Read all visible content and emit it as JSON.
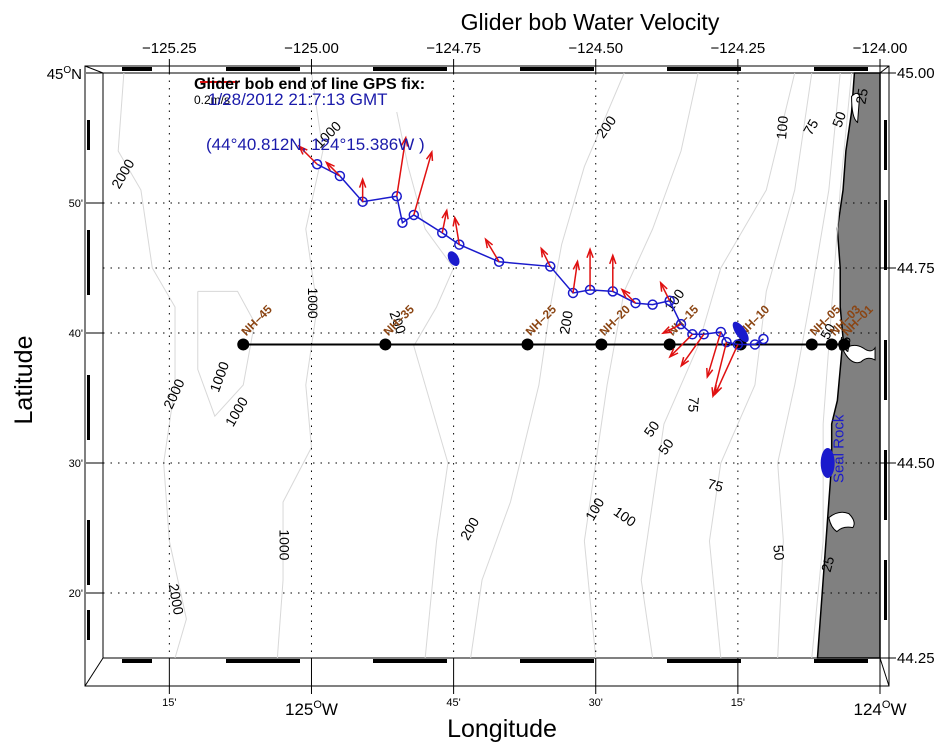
{
  "chart_data": {
    "type": "map",
    "title": "Glider bob Water Velocity",
    "xlabel": "Longitude",
    "ylabel": "Latitude",
    "xlim": [
      -125.3667,
      -124.0
    ],
    "ylim": [
      44.25,
      45.0
    ],
    "top_ticks": [
      {
        "value": -125.25,
        "label": "−125.25"
      },
      {
        "value": -125.0,
        "label": "−125.00"
      },
      {
        "value": -124.75,
        "label": "−124.75"
      },
      {
        "value": -124.5,
        "label": "−124.50"
      },
      {
        "value": -124.25,
        "label": "−124.25"
      },
      {
        "value": -124.0,
        "label": "−124.00"
      }
    ],
    "right_ticks": [
      {
        "value": 45.0,
        "label": "45.00"
      },
      {
        "value": 44.75,
        "label": "44.75"
      },
      {
        "value": 44.5,
        "label": "44.50"
      },
      {
        "value": 44.25,
        "label": "44.25"
      }
    ],
    "bottom_ticks": [
      {
        "value": -125.25,
        "label": "15'",
        "major": false
      },
      {
        "value": -125.0,
        "label": "125",
        "deg": true,
        "hemi": "W",
        "major": true
      },
      {
        "value": -124.75,
        "label": "45'",
        "major": false
      },
      {
        "value": -124.5,
        "label": "30'",
        "major": false
      },
      {
        "value": -124.25,
        "label": "15'",
        "major": false
      },
      {
        "value": -124.0,
        "label": "124",
        "deg": true,
        "hemi": "W",
        "major": true
      }
    ],
    "left_ticks": [
      {
        "value": 45.0,
        "label": "45",
        "deg": true,
        "hemi": "N",
        "major": true
      },
      {
        "value": 44.8333,
        "label": "50'",
        "major": false
      },
      {
        "value": 44.6667,
        "label": "40'",
        "major": false
      },
      {
        "value": 44.5,
        "label": "30'",
        "major": false
      },
      {
        "value": 44.3333,
        "label": "20'",
        "major": false
      }
    ],
    "grid": true,
    "stations": [
      {
        "name": "NH–45",
        "lon": -125.12,
        "lat": 44.652
      },
      {
        "name": "NH–35",
        "lon": -124.87,
        "lat": 44.652
      },
      {
        "name": "NH–25",
        "lon": -124.62,
        "lat": 44.652
      },
      {
        "name": "NH–20",
        "lon": -124.49,
        "lat": 44.652
      },
      {
        "name": "NH–15",
        "lon": -124.37,
        "lat": 44.652
      },
      {
        "name": "NH–10",
        "lon": -124.245,
        "lat": 44.652
      },
      {
        "name": "NH–05",
        "lon": -124.12,
        "lat": 44.652
      },
      {
        "name": "NH–03",
        "lon": -124.085,
        "lat": 44.652
      },
      {
        "name": "NH–01",
        "lon": -124.063,
        "lat": 44.652
      }
    ],
    "glider_track": [
      [
        -124.99,
        44.883
      ],
      [
        -124.95,
        44.868
      ],
      [
        -124.91,
        44.835
      ],
      [
        -124.85,
        44.842
      ],
      [
        -124.84,
        44.808
      ],
      [
        -124.82,
        44.818
      ],
      [
        -124.77,
        44.795
      ],
      [
        -124.74,
        44.78
      ],
      [
        -124.67,
        44.758
      ],
      [
        -124.58,
        44.752
      ],
      [
        -124.54,
        44.718
      ],
      [
        -124.51,
        44.722
      ],
      [
        -124.47,
        44.72
      ],
      [
        -124.43,
        44.705
      ],
      [
        -124.4,
        44.703
      ],
      [
        -124.37,
        44.708
      ],
      [
        -124.35,
        44.678
      ],
      [
        -124.33,
        44.665
      ],
      [
        -124.31,
        44.665
      ],
      [
        -124.28,
        44.668
      ],
      [
        -124.27,
        44.655
      ],
      [
        -124.25,
        44.652
      ],
      [
        -124.22,
        44.652
      ],
      [
        -124.205,
        44.659
      ]
    ],
    "velocity_vectors": [
      {
        "lon": -124.99,
        "lat": 44.883,
        "u": -0.04,
        "v": 0.04
      },
      {
        "lon": -124.95,
        "lat": 44.868,
        "u": -0.03,
        "v": 0.03
      },
      {
        "lon": -124.91,
        "lat": 44.835,
        "u": 0.0,
        "v": 0.05
      },
      {
        "lon": -124.85,
        "lat": 44.842,
        "u": 0.02,
        "v": 0.13
      },
      {
        "lon": -124.82,
        "lat": 44.818,
        "u": 0.04,
        "v": 0.14
      },
      {
        "lon": -124.77,
        "lat": 44.795,
        "u": 0.01,
        "v": 0.05
      },
      {
        "lon": -124.74,
        "lat": 44.78,
        "u": -0.01,
        "v": 0.06
      },
      {
        "lon": -124.67,
        "lat": 44.758,
        "u": -0.03,
        "v": 0.05
      },
      {
        "lon": -124.58,
        "lat": 44.752,
        "u": -0.02,
        "v": 0.04
      },
      {
        "lon": -124.54,
        "lat": 44.718,
        "u": 0.01,
        "v": 0.07
      },
      {
        "lon": -124.51,
        "lat": 44.722,
        "u": 0.0,
        "v": 0.09
      },
      {
        "lon": -124.47,
        "lat": 44.72,
        "u": 0.0,
        "v": 0.08
      },
      {
        "lon": -124.43,
        "lat": 44.705,
        "u": -0.03,
        "v": 0.03
      },
      {
        "lon": -124.37,
        "lat": 44.708,
        "u": -0.02,
        "v": 0.04
      },
      {
        "lon": -124.35,
        "lat": 44.678,
        "u": -0.04,
        "v": -0.02
      },
      {
        "lon": -124.33,
        "lat": 44.665,
        "u": -0.05,
        "v": -0.05
      },
      {
        "lon": -124.31,
        "lat": 44.665,
        "u": -0.05,
        "v": -0.07
      },
      {
        "lon": -124.28,
        "lat": 44.668,
        "u": -0.03,
        "v": -0.1
      },
      {
        "lon": -124.27,
        "lat": 44.655,
        "u": -0.03,
        "v": -0.12
      },
      {
        "lon": -124.25,
        "lat": 44.652,
        "u": -0.05,
        "v": -0.11
      }
    ],
    "contours": [
      {
        "level": "2000"
      },
      {
        "level": "1000"
      },
      {
        "level": "200"
      },
      {
        "level": "100"
      },
      {
        "level": "75"
      },
      {
        "level": "50"
      },
      {
        "level": "25"
      }
    ],
    "contour_labels": [
      {
        "text": "2000",
        "lon": -125.33,
        "lat": 44.87,
        "rot": -60
      },
      {
        "text": "1000",
        "lon": -124.97,
        "lat": 44.92,
        "rot": -45
      },
      {
        "text": "1000",
        "lon": -125.0,
        "lat": 44.705,
        "rot": 90
      },
      {
        "text": "2000",
        "lon": -125.24,
        "lat": 44.588,
        "rot": -65
      },
      {
        "text": "1000",
        "lon": -125.16,
        "lat": 44.61,
        "rot": -70
      },
      {
        "text": "1000",
        "lon": -125.13,
        "lat": 44.565,
        "rot": -60
      },
      {
        "text": "1000",
        "lon": -125.05,
        "lat": 44.395,
        "rot": 90
      },
      {
        "text": "2000",
        "lon": -125.24,
        "lat": 44.325,
        "rot": 80
      },
      {
        "text": "200",
        "lon": -124.85,
        "lat": 44.68,
        "rot": 70
      },
      {
        "text": "200",
        "lon": -124.55,
        "lat": 44.68,
        "rot": -80
      },
      {
        "text": "200",
        "lon": -124.72,
        "lat": 44.415,
        "rot": -60
      },
      {
        "text": "200",
        "lon": -124.48,
        "lat": 44.93,
        "rot": -55
      },
      {
        "text": "100",
        "lon": -124.36,
        "lat": 44.708,
        "rot": -55
      },
      {
        "text": "100",
        "lon": -124.17,
        "lat": 44.93,
        "rot": -85
      },
      {
        "text": "75",
        "lon": -124.12,
        "lat": 44.93,
        "rot": -60
      },
      {
        "text": "50",
        "lon": -124.07,
        "lat": 44.94,
        "rot": -70
      },
      {
        "text": "25",
        "lon": -124.03,
        "lat": 44.97,
        "rot": -80
      },
      {
        "text": "50",
        "lon": -124.4,
        "lat": 44.543,
        "rot": -55
      },
      {
        "text": "50",
        "lon": -124.375,
        "lat": 44.52,
        "rot": -55
      },
      {
        "text": "75",
        "lon": -124.29,
        "lat": 44.47,
        "rot": 15
      },
      {
        "text": "75",
        "lon": -124.33,
        "lat": 44.575,
        "rot": 95
      },
      {
        "text": "100",
        "lon": -124.5,
        "lat": 44.44,
        "rot": -60
      },
      {
        "text": "100",
        "lon": -124.45,
        "lat": 44.43,
        "rot": 35
      },
      {
        "text": "50",
        "lon": -124.18,
        "lat": 44.385,
        "rot": 85
      },
      {
        "text": "25",
        "lon": -124.09,
        "lat": 44.37,
        "rot": -75
      },
      {
        "text": "50",
        "lon": -124.09,
        "lat": 44.668,
        "rot": -60
      },
      {
        "text": "25",
        "lon": -124.06,
        "lat": 44.652,
        "rot": -80
      }
    ],
    "landmarks": [
      {
        "name": "Seal Rock",
        "lon": -124.085,
        "lat": 44.5
      }
    ],
    "annotation": {
      "heading": "Glider bob end of line GPS fix:",
      "scale_label": "0.2m/s",
      "datetime": "1/28/2012 21:7:13 GMT",
      "position": "(44°40.812N, 124°15.386W )"
    },
    "colors": {
      "track": "#1a1acc",
      "vectors": "#e01010",
      "stations": "#000000",
      "station_labels": "#8b4513",
      "land": "#808080",
      "contours": "#d8d8d8",
      "annotation_blue": "#1a1aaa"
    }
  }
}
